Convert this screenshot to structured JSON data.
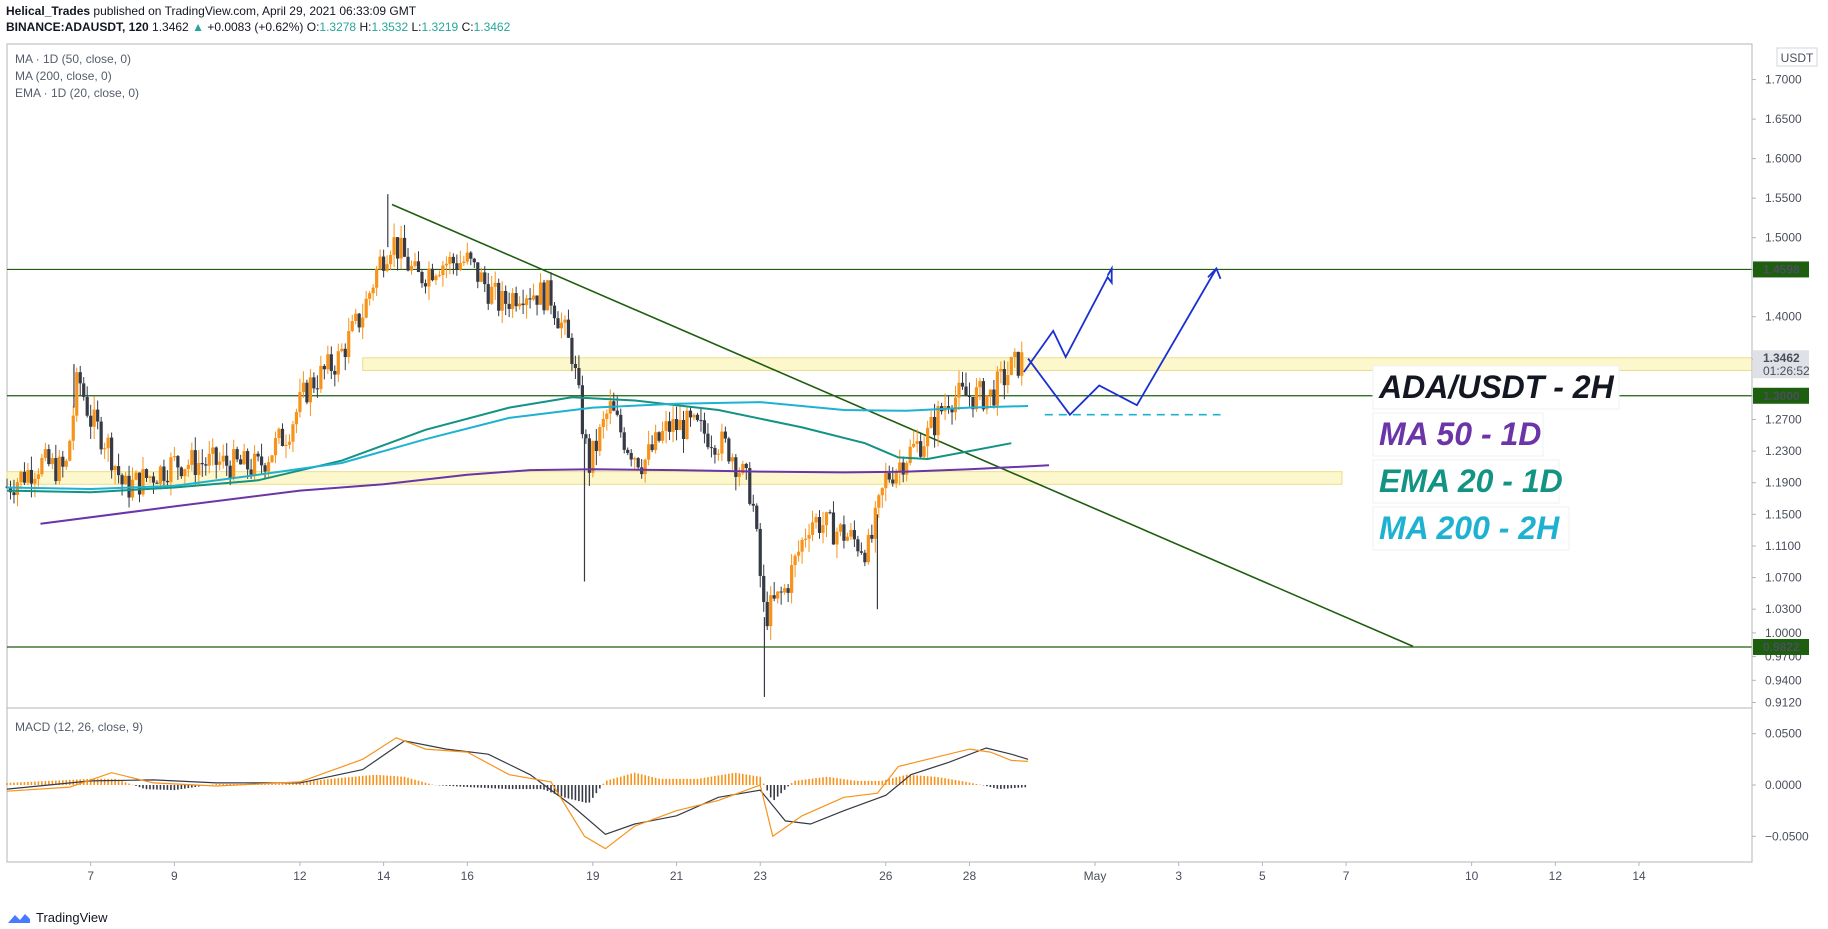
{
  "header": {
    "author": "Helical_Trades",
    "published": "published on TradingView.com, April 29, 2021 06:33:09 GMT",
    "symbol": "BINANCE:ADAUSDT, 120",
    "last": "1.3462",
    "change_arrow": "▲",
    "change": "+0.0083 (+0.62%)",
    "o_label": "O:",
    "o_value": "1.3278",
    "h_label": "H:",
    "h_value": "1.3532",
    "l_label": "L:",
    "l_value": "1.3219",
    "c_label": "C:",
    "c_value": "1.3462"
  },
  "indicators": [
    "MA · 1D (50, close, 0)",
    "MA (200, close, 0)",
    "EMA · 1D (20, close, 0)"
  ],
  "macd_label": "MACD (12, 26, close, 9)",
  "currency_badge": "USDT",
  "footer": {
    "brand": "TradingView",
    "logo_icon": "tradingview-logo-icon"
  },
  "annotations": [
    {
      "text": "ADA/USDT - 2H",
      "color": "#131722"
    },
    {
      "text": "MA 50 - 1D",
      "color": "#6b35a8"
    },
    {
      "text": "EMA 20 - 1D",
      "color": "#129384"
    },
    {
      "text": "MA 200 - 2H",
      "color": "#1eb2d2"
    }
  ],
  "price_badges": [
    {
      "value": 1.4598,
      "label": "1.4598",
      "color": "#1d5e0f"
    },
    {
      "value": 1.3462,
      "label": "1.3462",
      "sub": "01:26:52",
      "color": "#dfe1e6"
    },
    {
      "value": 1.3,
      "label": "1.3000",
      "color": "#1d5e0f"
    },
    {
      "value": 0.9822,
      "label": "0.9822",
      "color": "#1d5e0f"
    }
  ],
  "colors": {
    "up": "#f7931a",
    "down": "#363a45",
    "ma50": "#6b35a8",
    "ema20": "#129384",
    "ma200": "#1eb2d2",
    "trend": "#1d5e0f",
    "projection": "#1a2fd4",
    "zone": "#fdf7c8"
  },
  "chart_data": {
    "type": "candlestick",
    "title": "",
    "y_axis": {
      "min": 0.905,
      "max": 1.745,
      "ticks": [
        0.912,
        0.94,
        0.97,
        1.0,
        1.03,
        1.07,
        1.11,
        1.15,
        1.19,
        1.23,
        1.27,
        1.3,
        1.3462,
        1.4,
        1.4598,
        1.5,
        1.55,
        1.6,
        1.65,
        1.7
      ],
      "tick_labels": [
        "0.9120",
        "0.9400",
        "0.9700",
        "1.0000",
        "1.0300",
        "1.0700",
        "1.1100",
        "1.1500",
        "1.1900",
        "1.2300",
        "1.2700",
        "1.3000",
        "1.3462",
        "1.4000",
        "1.4598",
        "1.5000",
        "1.5500",
        "1.6000",
        "1.6500",
        "1.7000"
      ]
    },
    "x_axis": {
      "tick_labels": [
        "7",
        "9",
        "12",
        "14",
        "16",
        "19",
        "21",
        "23",
        "26",
        "28",
        "May",
        "3",
        "5",
        "7",
        "10",
        "12",
        "14"
      ],
      "tick_days": [
        7,
        9,
        12,
        14,
        16,
        19,
        21,
        23,
        26,
        28,
        31,
        33,
        35,
        37,
        40,
        42,
        44
      ],
      "day_range": [
        5.0,
        46.7
      ],
      "note": "days counted from April 1, 2021; 31 = May 1"
    },
    "horizontal_levels": [
      1.4598,
      1.3,
      0.9822
    ],
    "zones": [
      {
        "from_day": 13.5,
        "to_day": 46.7,
        "low": 1.332,
        "high": 1.348
      },
      {
        "from_day": 5.0,
        "to_day": 36.9,
        "low": 1.188,
        "high": 1.204
      }
    ],
    "trendline": {
      "from": {
        "day": 14.2,
        "price": 1.542
      },
      "to": {
        "day": 38.6,
        "price": 0.983
      }
    },
    "series": [
      {
        "name": "ADA/USDT - 2H",
        "kind": "candles",
        "anchors": [
          [
            5.0,
            1.185
          ],
          [
            5.8,
            1.215
          ],
          [
            6.4,
            1.205
          ],
          [
            6.7,
            1.325
          ],
          [
            7.0,
            1.27
          ],
          [
            7.4,
            1.24
          ],
          [
            7.8,
            1.182
          ],
          [
            8.4,
            1.198
          ],
          [
            9.0,
            1.215
          ],
          [
            10.0,
            1.215
          ],
          [
            11.0,
            1.21
          ],
          [
            11.7,
            1.255
          ],
          [
            12.2,
            1.312
          ],
          [
            12.9,
            1.345
          ],
          [
            13.5,
            1.405
          ],
          [
            13.9,
            1.468
          ],
          [
            14.2,
            1.498
          ],
          [
            14.8,
            1.448
          ],
          [
            15.3,
            1.468
          ],
          [
            16.0,
            1.47
          ],
          [
            16.8,
            1.415
          ],
          [
            17.3,
            1.435
          ],
          [
            18.0,
            1.425
          ],
          [
            18.5,
            1.355
          ],
          [
            18.9,
            1.21
          ],
          [
            19.4,
            1.285
          ],
          [
            19.8,
            1.24
          ],
          [
            20.2,
            1.215
          ],
          [
            20.8,
            1.26
          ],
          [
            21.3,
            1.262
          ],
          [
            21.8,
            1.25
          ],
          [
            22.3,
            1.23
          ],
          [
            22.8,
            1.175
          ],
          [
            23.1,
            1.02
          ],
          [
            23.6,
            1.055
          ],
          [
            24.2,
            1.145
          ],
          [
            25.0,
            1.125
          ],
          [
            25.6,
            1.105
          ],
          [
            26.0,
            1.195
          ],
          [
            26.5,
            1.225
          ],
          [
            27.0,
            1.25
          ],
          [
            27.5,
            1.298
          ],
          [
            28.0,
            1.3
          ],
          [
            28.5,
            1.3
          ],
          [
            29.0,
            1.335
          ],
          [
            29.3,
            1.346
          ]
        ],
        "wicks": [
          [
            6.6,
            1.34
          ],
          [
            14.1,
            1.555
          ],
          [
            18.8,
            1.065
          ],
          [
            23.1,
            0.919
          ],
          [
            25.8,
            1.03
          ]
        ]
      },
      {
        "name": "MA 50 - 1D",
        "points": [
          [
            5.8,
            1.138
          ],
          [
            9.0,
            1.16
          ],
          [
            12.0,
            1.18
          ],
          [
            14.0,
            1.188
          ],
          [
            16.0,
            1.2
          ],
          [
            17.5,
            1.206
          ],
          [
            19.0,
            1.207
          ],
          [
            21.0,
            1.206
          ],
          [
            23.0,
            1.204
          ],
          [
            25.0,
            1.203
          ],
          [
            26.5,
            1.204
          ],
          [
            28.0,
            1.207
          ],
          [
            29.9,
            1.212
          ]
        ]
      },
      {
        "name": "EMA 20 - 1D",
        "points": [
          [
            5.0,
            1.18
          ],
          [
            7.0,
            1.178
          ],
          [
            9.0,
            1.184
          ],
          [
            11.0,
            1.193
          ],
          [
            13.0,
            1.218
          ],
          [
            15.0,
            1.257
          ],
          [
            17.0,
            1.285
          ],
          [
            18.5,
            1.298
          ],
          [
            20.0,
            1.294
          ],
          [
            22.0,
            1.282
          ],
          [
            24.0,
            1.26
          ],
          [
            25.5,
            1.24
          ],
          [
            26.3,
            1.222
          ],
          [
            27.0,
            1.22
          ],
          [
            28.0,
            1.23
          ],
          [
            29.0,
            1.24
          ]
        ]
      },
      {
        "name": "MA 200 - 2H",
        "points": [
          [
            5.0,
            1.184
          ],
          [
            7.0,
            1.182
          ],
          [
            9.0,
            1.186
          ],
          [
            11.0,
            1.2
          ],
          [
            13.0,
            1.215
          ],
          [
            15.0,
            1.245
          ],
          [
            17.0,
            1.272
          ],
          [
            19.0,
            1.285
          ],
          [
            21.0,
            1.29
          ],
          [
            23.0,
            1.292
          ],
          [
            25.0,
            1.282
          ],
          [
            26.5,
            1.281
          ],
          [
            28.0,
            1.285
          ],
          [
            29.4,
            1.287
          ]
        ]
      }
    ],
    "projection": [
      [
        29.3,
        1.33
      ],
      [
        30.0,
        1.382
      ],
      [
        30.3,
        1.349
      ],
      [
        31.3,
        1.45
      ],
      [
        31.4,
        1.443
      ],
      [
        31.4,
        1.461
      ],
      [
        31.3,
        1.452
      ]
    ],
    "projection2": [
      [
        29.4,
        1.347
      ],
      [
        30.4,
        1.276
      ],
      [
        31.1,
        1.313
      ],
      [
        32.0,
        1.288
      ],
      [
        33.9,
        1.461
      ],
      [
        33.7,
        1.45
      ],
      [
        33.9,
        1.461
      ],
      [
        34.0,
        1.448
      ]
    ],
    "projection_dashed": {
      "from_day": 29.8,
      "to_day": 34.0,
      "price": 1.276
    },
    "macd": {
      "y_range": [
        -0.075,
        0.075
      ],
      "ticks": [
        -0.05,
        0.0,
        0.05
      ],
      "tick_labels": [
        "−0.0500",
        "0.0000",
        "0.0500"
      ],
      "macd_line": [
        [
          5.0,
          -0.006
        ],
        [
          6.5,
          -0.002
        ],
        [
          7.5,
          0.012
        ],
        [
          8.5,
          0.002
        ],
        [
          10.0,
          -0.001
        ],
        [
          12.0,
          0.003
        ],
        [
          13.5,
          0.025
        ],
        [
          14.3,
          0.046
        ],
        [
          15.0,
          0.035
        ],
        [
          16.0,
          0.032
        ],
        [
          17.0,
          0.01
        ],
        [
          18.0,
          0.003
        ],
        [
          18.8,
          -0.05
        ],
        [
          19.3,
          -0.062
        ],
        [
          20.0,
          -0.04
        ],
        [
          21.0,
          -0.025
        ],
        [
          22.0,
          -0.015
        ],
        [
          23.0,
          0.0
        ],
        [
          23.3,
          -0.05
        ],
        [
          24.0,
          -0.03
        ],
        [
          25.0,
          -0.012
        ],
        [
          25.8,
          -0.008
        ],
        [
          26.3,
          0.018
        ],
        [
          27.0,
          0.025
        ],
        [
          28.0,
          0.035
        ],
        [
          28.5,
          0.032
        ],
        [
          29.0,
          0.024
        ],
        [
          29.4,
          0.023
        ]
      ],
      "signal_line": [
        [
          5.0,
          -0.004
        ],
        [
          7.0,
          0.004
        ],
        [
          8.5,
          0.005
        ],
        [
          10.0,
          0.002
        ],
        [
          12.0,
          0.002
        ],
        [
          13.5,
          0.015
        ],
        [
          14.5,
          0.043
        ],
        [
          15.5,
          0.035
        ],
        [
          16.5,
          0.03
        ],
        [
          17.5,
          0.01
        ],
        [
          18.5,
          -0.02
        ],
        [
          19.3,
          -0.048
        ],
        [
          20.0,
          -0.038
        ],
        [
          21.0,
          -0.03
        ],
        [
          22.0,
          -0.012
        ],
        [
          23.0,
          -0.005
        ],
        [
          23.6,
          -0.035
        ],
        [
          24.2,
          -0.038
        ],
        [
          25.0,
          -0.025
        ],
        [
          26.0,
          -0.01
        ],
        [
          26.6,
          0.01
        ],
        [
          27.5,
          0.022
        ],
        [
          28.4,
          0.036
        ],
        [
          29.0,
          0.03
        ],
        [
          29.4,
          0.025
        ]
      ],
      "histogram": [
        [
          5.0,
          0.002
        ],
        [
          6.0,
          0.004
        ],
        [
          7.0,
          0.006
        ],
        [
          7.6,
          0.006
        ],
        [
          8.3,
          -0.004
        ],
        [
          9.0,
          -0.005
        ],
        [
          10.0,
          0.001
        ],
        [
          11.0,
          0.001
        ],
        [
          12.0,
          0.003
        ],
        [
          13.0,
          0.007
        ],
        [
          13.8,
          0.01
        ],
        [
          14.5,
          0.008
        ],
        [
          15.2,
          0.0
        ],
        [
          16.0,
          -0.002
        ],
        [
          17.0,
          -0.004
        ],
        [
          17.8,
          -0.004
        ],
        [
          18.3,
          -0.012
        ],
        [
          18.9,
          -0.018
        ],
        [
          19.3,
          0.004
        ],
        [
          20.0,
          0.012
        ],
        [
          20.6,
          0.006
        ],
        [
          21.5,
          0.006
        ],
        [
          22.4,
          0.012
        ],
        [
          23.0,
          0.008
        ],
        [
          23.3,
          -0.016
        ],
        [
          23.8,
          0.004
        ],
        [
          24.6,
          0.008
        ],
        [
          25.3,
          0.004
        ],
        [
          25.9,
          0.004
        ],
        [
          26.5,
          0.01
        ],
        [
          27.2,
          0.008
        ],
        [
          27.8,
          0.004
        ],
        [
          28.3,
          0.0
        ],
        [
          28.7,
          -0.004
        ],
        [
          29.4,
          -0.002
        ]
      ]
    }
  }
}
